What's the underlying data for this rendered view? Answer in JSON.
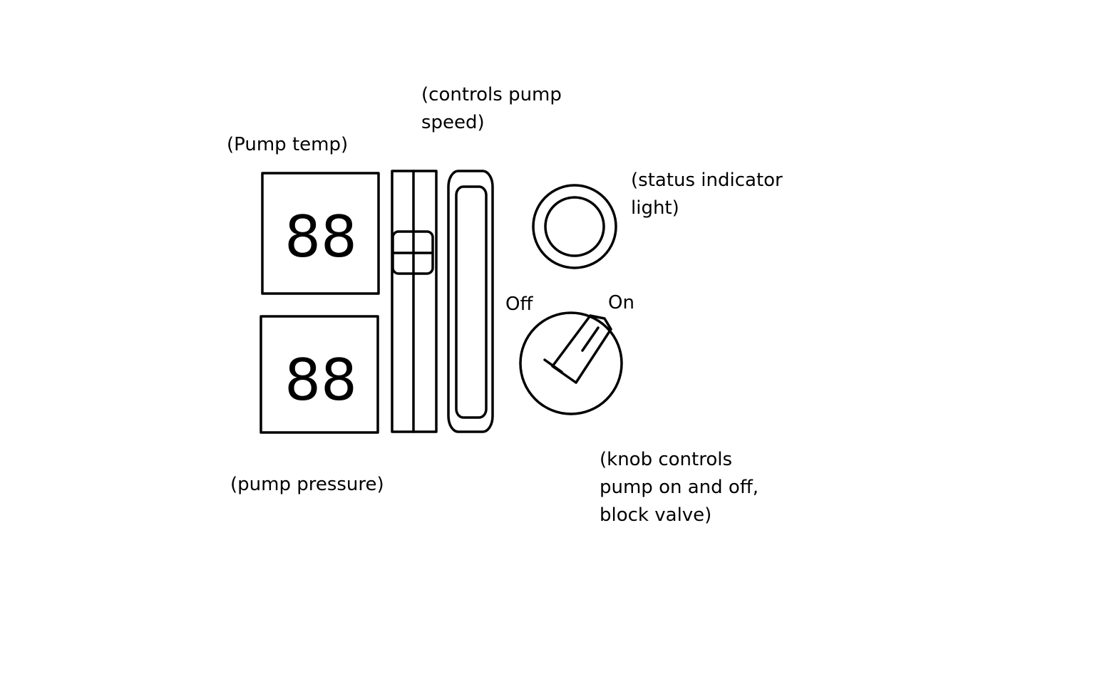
{
  "labels": {
    "pump_temp": "(Pump temp)",
    "pump_pressure": "(pump pressure)",
    "slider_caption": [
      "(controls pump",
      "speed)"
    ],
    "status_caption": [
      "(status indicator",
      "light)"
    ],
    "knob_caption": [
      "(knob controls",
      "pump on and off,",
      "block valve)"
    ],
    "knob_off": "Off",
    "knob_on": "On"
  },
  "displays": {
    "temp_value": "88",
    "pressure_value": "88"
  },
  "colors": {
    "stroke": "#000000",
    "background": "#ffffff"
  }
}
